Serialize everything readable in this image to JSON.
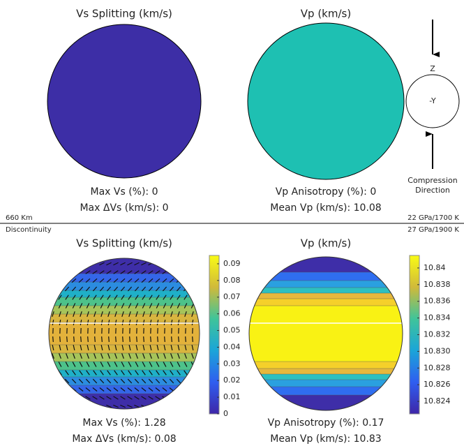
{
  "chart_data": [
    {
      "type": "pole-figure",
      "title": "Vs Splitting (km/s)",
      "color": "#3d2ea6",
      "annotations": [
        "Max Vs (%): 0",
        "Max ΔVs (km/s): 0"
      ]
    },
    {
      "type": "pole-figure",
      "title": "Vp (km/s)",
      "color": "#1ec0b2",
      "annotations": [
        "Vp Anisotropy (%): 0",
        "Mean Vp (km/s): 10.08"
      ]
    },
    {
      "type": "contour",
      "title": "Vs Splitting (km/s)",
      "ylim": [
        0,
        0.095
      ],
      "yticks": [
        0,
        0.01,
        0.02,
        0.03,
        0.04,
        0.05,
        0.06,
        0.07,
        0.08,
        0.09
      ],
      "annotations": [
        "Max Vs (%): 1.28",
        "Max ΔVs (km/s): 0.08"
      ]
    },
    {
      "type": "contour",
      "title": "Vp (km/s)",
      "ylim": [
        10.8225,
        10.8415
      ],
      "yticks": [
        10.824,
        10.826,
        10.828,
        {
          "value": 10.83,
          "label": "10.830"
        },
        10.832,
        10.834,
        10.836,
        10.838,
        10.84
      ],
      "annotations": [
        "Vp Anisotropy (%): 0.17",
        "Mean Vp  (km/s): 10.83"
      ]
    }
  ],
  "boundary": {
    "left_top": "660 Km",
    "left_bottom": "Discontinuity",
    "right_top": "22 GPa/1700 K",
    "right_bottom": "27 GPa/1900 K"
  },
  "legend": {
    "z": "Z",
    "center": "-Y",
    "caption": [
      "Compression",
      "Direction"
    ]
  }
}
